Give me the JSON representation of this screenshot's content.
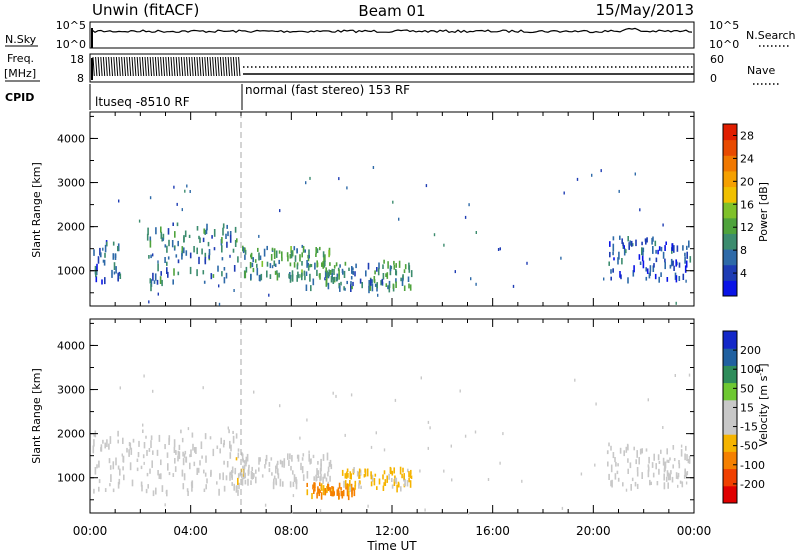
{
  "header": {
    "station": "Unwin (fitACF)",
    "beam": "Beam 01",
    "date": "15/May/2013"
  },
  "panels": {
    "nsky_label": "N.Sky",
    "nsearch_label": "N.Search",
    "nsky_ticks": [
      "10^5",
      "10^0"
    ],
    "nsearch_ticks": [
      "10^5",
      "10^0"
    ],
    "freq_label_top": "Freq.",
    "freq_label_bottom": "[MHz]",
    "freq_ticks": [
      "18",
      "8"
    ],
    "nave_label": "Nave",
    "nave_ticks": [
      "60",
      "0"
    ],
    "cpid_label": "CPID",
    "cpid_segment_1": "ltuseq -8510 RF",
    "cpid_segment_2": "normal (fast stereo) 153 RF"
  },
  "colors": {
    "power": [
      "#0a14e6",
      "#1e3cb4",
      "#2e6aa8",
      "#3c8c6e",
      "#4fa33c",
      "#7fc12a",
      "#f0c000",
      "#f5a000",
      "#f07800",
      "#e84a00",
      "#e01e00"
    ],
    "velocity": [
      "#e00000",
      "#f04000",
      "#f58000",
      "#f5b400",
      "#c8c8c8",
      "#c8c8c8",
      "#6ec832",
      "#2e8c5a",
      "#2060a0",
      "#1428c8"
    ]
  },
  "chart_data": [
    {
      "type": "heatmap",
      "name": "power",
      "xlabel": "",
      "ylabel": "Slant Range [km]",
      "x_ticks": [
        "00:00",
        "04:00",
        "08:00",
        "12:00",
        "16:00",
        "20:00",
        "00:00"
      ],
      "x_range_hours": [
        0,
        24
      ],
      "y_ticks": [
        "1000",
        "2000",
        "3000",
        "4000"
      ],
      "ylim": [
        200,
        4600
      ],
      "colorbar_label": "Power [dB]",
      "colorbar_ticks": [
        "4",
        "8",
        "12",
        "16",
        "20",
        "24",
        "28"
      ],
      "clim": [
        0,
        30
      ],
      "echo_regions": [
        {
          "t": [
            0.1,
            1.2
          ],
          "range_km": [
            800,
            1700
          ],
          "value_db": 6
        },
        {
          "t": [
            2.2,
            5.9
          ],
          "range_km": [
            700,
            2100
          ],
          "value_db": 8
        },
        {
          "t": [
            6.0,
            9.6
          ],
          "range_km": [
            900,
            1600
          ],
          "value_db": 10
        },
        {
          "t": [
            8.5,
            12.8
          ],
          "range_km": [
            650,
            1250
          ],
          "value_db": 9
        },
        {
          "t": [
            20.5,
            23.9
          ],
          "range_km": [
            850,
            1800
          ],
          "value_db": 5
        }
      ]
    },
    {
      "type": "heatmap",
      "name": "velocity",
      "xlabel": "Time UT",
      "ylabel": "Slant Range [km]",
      "x_ticks": [
        "00:00",
        "04:00",
        "08:00",
        "12:00",
        "16:00",
        "20:00",
        "00:00"
      ],
      "x_range_hours": [
        0,
        24
      ],
      "y_ticks": [
        "1000",
        "2000",
        "3000",
        "4000"
      ],
      "ylim": [
        200,
        4600
      ],
      "colorbar_label": "Velocity [m s^-1]",
      "colorbar_ticks": [
        "200",
        "100",
        "50",
        "15",
        "-15",
        "-50",
        "-100",
        "-200"
      ],
      "clim": [
        -250,
        250
      ],
      "echo_regions": [
        {
          "t": [
            0.1,
            5.9
          ],
          "range_km": [
            700,
            2100
          ],
          "value_ms": 0
        },
        {
          "t": [
            5.6,
            6.2
          ],
          "range_km": [
            800,
            1500
          ],
          "value_ms": -40
        },
        {
          "t": [
            6.0,
            9.6
          ],
          "range_km": [
            900,
            1600
          ],
          "value_ms": -20
        },
        {
          "t": [
            8.5,
            10.5
          ],
          "range_km": [
            650,
            900
          ],
          "value_ms": -120
        },
        {
          "t": [
            10.0,
            12.8
          ],
          "range_km": [
            800,
            1250
          ],
          "value_ms": -60
        },
        {
          "t": [
            20.5,
            23.9
          ],
          "range_km": [
            850,
            1800
          ],
          "value_ms": 5
        }
      ]
    }
  ]
}
